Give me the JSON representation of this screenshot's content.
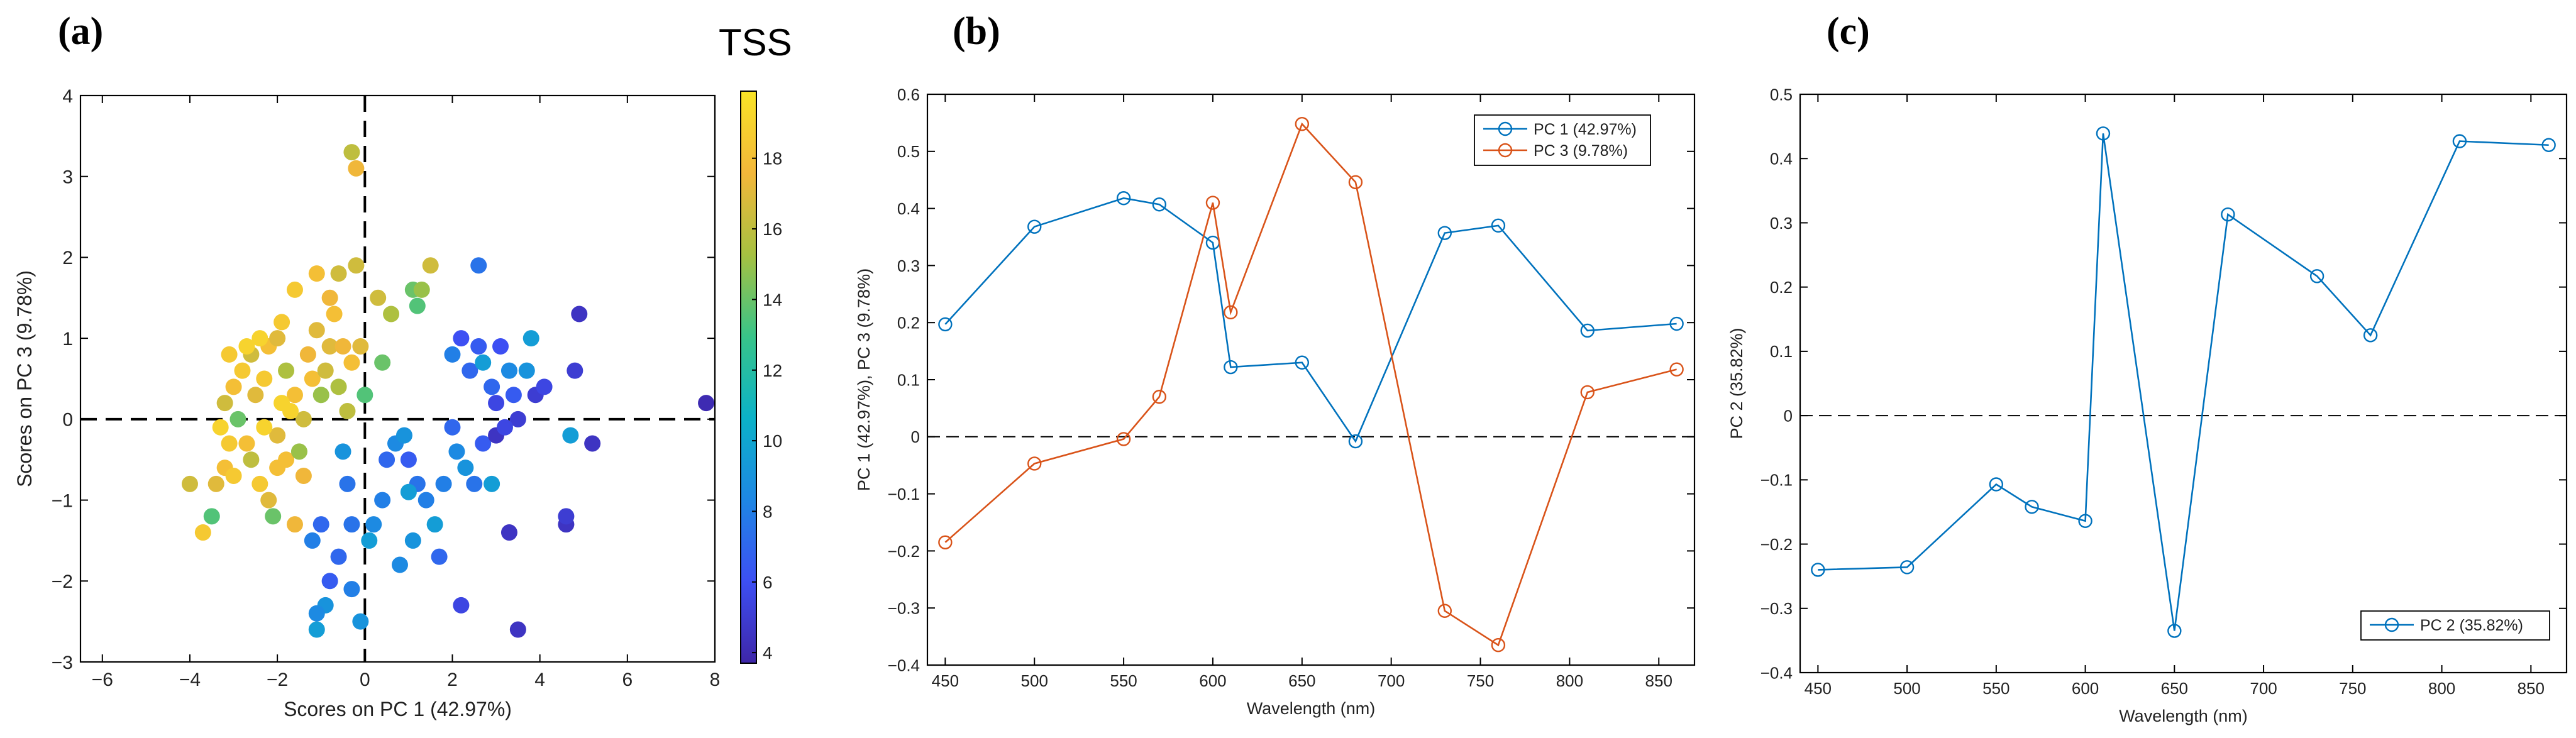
{
  "figure": {
    "panel_letters": [
      "(a)",
      "(b)",
      "(c)"
    ],
    "colorbar_title": "TSS",
    "colormap": [
      "#3e26a8",
      "#3d4ff3",
      "#1e87e4",
      "#0bb2c8",
      "#38c489",
      "#a6c141",
      "#f3b73a",
      "#f9e426"
    ]
  },
  "chart_data": [
    {
      "id": "a",
      "type": "scatter",
      "title": "",
      "xlabel": "Scores on PC 1 (42.97%)",
      "ylabel": "Scores on PC 3 (9.78%)",
      "xlim": [
        -6.5,
        8
      ],
      "ylim": [
        -3,
        4
      ],
      "xticks": [
        -6,
        -4,
        -2,
        0,
        2,
        4,
        6,
        8
      ],
      "yticks": [
        -3,
        -2,
        -1,
        0,
        1,
        2,
        3,
        4
      ],
      "grid": false,
      "reference_lines": "dashed lines at x = 0 and y = 0",
      "color_variable": "TSS",
      "colorbar_range": [
        3.7,
        19.9
      ],
      "colorbar_ticks": [
        4,
        6,
        8,
        10,
        12,
        14,
        16,
        18
      ],
      "points": [
        {
          "x": -0.3,
          "y": 3.3,
          "c": 16.0
        },
        {
          "x": -0.2,
          "y": 3.1,
          "c": 17.5
        },
        {
          "x": -3.7,
          "y": -1.4,
          "c": 18.5
        },
        {
          "x": -4.0,
          "y": -0.8,
          "c": 16.5
        },
        {
          "x": -3.5,
          "y": -1.2,
          "c": 13.5
        },
        {
          "x": -3.4,
          "y": -0.8,
          "c": 17.0
        },
        {
          "x": -3.2,
          "y": -0.6,
          "c": 18.0
        },
        {
          "x": -3.0,
          "y": -0.7,
          "c": 18.5
        },
        {
          "x": -3.3,
          "y": -0.1,
          "c": 19.0
        },
        {
          "x": -3.1,
          "y": -0.3,
          "c": 18.5
        },
        {
          "x": -2.9,
          "y": 0.0,
          "c": 14.0
        },
        {
          "x": -2.7,
          "y": -0.3,
          "c": 18.0
        },
        {
          "x": -2.6,
          "y": -0.5,
          "c": 16.0
        },
        {
          "x": -2.4,
          "y": -0.8,
          "c": 18.5
        },
        {
          "x": -2.2,
          "y": -1.0,
          "c": 17.0
        },
        {
          "x": -2.1,
          "y": -1.2,
          "c": 14.0
        },
        {
          "x": -2.0,
          "y": -0.6,
          "c": 18.0
        },
        {
          "x": -1.6,
          "y": -1.3,
          "c": 17.5
        },
        {
          "x": -2.0,
          "y": -0.2,
          "c": 17.0
        },
        {
          "x": -1.8,
          "y": -0.5,
          "c": 18.0
        },
        {
          "x": -1.5,
          "y": -0.4,
          "c": 15.0
        },
        {
          "x": -1.4,
          "y": -0.7,
          "c": 17.5
        },
        {
          "x": -3.2,
          "y": 0.2,
          "c": 16.5
        },
        {
          "x": -3.0,
          "y": 0.4,
          "c": 18.0
        },
        {
          "x": -2.8,
          "y": 0.6,
          "c": 18.5
        },
        {
          "x": -2.6,
          "y": 0.8,
          "c": 16.5
        },
        {
          "x": -2.5,
          "y": 0.3,
          "c": 17.0
        },
        {
          "x": -2.3,
          "y": 0.5,
          "c": 18.5
        },
        {
          "x": -2.2,
          "y": 0.9,
          "c": 18.0
        },
        {
          "x": -2.0,
          "y": 1.0,
          "c": 17.0
        },
        {
          "x": -1.9,
          "y": 1.2,
          "c": 18.5
        },
        {
          "x": -1.8,
          "y": 0.6,
          "c": 15.5
        },
        {
          "x": -1.6,
          "y": 0.3,
          "c": 18.0
        },
        {
          "x": -1.4,
          "y": 0.0,
          "c": 16.5
        },
        {
          "x": -1.3,
          "y": 0.8,
          "c": 17.5
        },
        {
          "x": -1.2,
          "y": 0.5,
          "c": 18.0
        },
        {
          "x": -1.1,
          "y": 1.1,
          "c": 17.0
        },
        {
          "x": -1.0,
          "y": 0.3,
          "c": 15.0
        },
        {
          "x": -0.9,
          "y": 0.6,
          "c": 16.5
        },
        {
          "x": -0.8,
          "y": 0.9,
          "c": 17.0
        },
        {
          "x": -0.7,
          "y": 1.3,
          "c": 18.0
        },
        {
          "x": -0.6,
          "y": 0.4,
          "c": 15.5
        },
        {
          "x": -0.5,
          "y": 0.9,
          "c": 17.5
        },
        {
          "x": -0.4,
          "y": 0.1,
          "c": 16.0
        },
        {
          "x": -0.3,
          "y": 0.7,
          "c": 18.0
        },
        {
          "x": -0.2,
          "y": 1.9,
          "c": 16.5
        },
        {
          "x": -0.1,
          "y": 0.9,
          "c": 17.0
        },
        {
          "x": -1.6,
          "y": 1.6,
          "c": 18.5
        },
        {
          "x": -1.1,
          "y": 1.8,
          "c": 18.0
        },
        {
          "x": -0.8,
          "y": 1.5,
          "c": 17.5
        },
        {
          "x": -0.6,
          "y": 1.8,
          "c": 16.5
        },
        {
          "x": 0.3,
          "y": 1.5,
          "c": 16.5
        },
        {
          "x": 0.6,
          "y": 1.3,
          "c": 15.5
        },
        {
          "x": 1.1,
          "y": 1.6,
          "c": 14.0
        },
        {
          "x": 1.3,
          "y": 1.6,
          "c": 15.0
        },
        {
          "x": 1.2,
          "y": 1.4,
          "c": 13.5
        },
        {
          "x": 1.5,
          "y": 1.9,
          "c": 16.5
        },
        {
          "x": 0.4,
          "y": 0.7,
          "c": 14.0
        },
        {
          "x": 0.0,
          "y": 0.3,
          "c": 13.5
        },
        {
          "x": -2.4,
          "y": 1.0,
          "c": 19.0
        },
        {
          "x": -2.7,
          "y": 0.9,
          "c": 19.0
        },
        {
          "x": -3.1,
          "y": 0.8,
          "c": 18.5
        },
        {
          "x": -1.7,
          "y": 0.1,
          "c": 19.0
        },
        {
          "x": -2.3,
          "y": -0.1,
          "c": 19.0
        },
        {
          "x": -1.9,
          "y": 0.2,
          "c": 19.0
        },
        {
          "x": -0.5,
          "y": -0.4,
          "c": 9.0
        },
        {
          "x": -0.3,
          "y": -1.3,
          "c": 7.5
        },
        {
          "x": -0.6,
          "y": -1.7,
          "c": 7.0
        },
        {
          "x": -0.8,
          "y": -2.0,
          "c": 6.5
        },
        {
          "x": -0.9,
          "y": -2.3,
          "c": 9.0
        },
        {
          "x": -1.1,
          "y": -2.4,
          "c": 8.5
        },
        {
          "x": -1.1,
          "y": -2.6,
          "c": 9.5
        },
        {
          "x": -1.2,
          "y": -1.5,
          "c": 8.0
        },
        {
          "x": -1.0,
          "y": -1.3,
          "c": 7.0
        },
        {
          "x": -0.4,
          "y": -0.8,
          "c": 7.5
        },
        {
          "x": -0.1,
          "y": -2.5,
          "c": 9.0
        },
        {
          "x": -0.3,
          "y": -2.1,
          "c": 8.0
        },
        {
          "x": 0.1,
          "y": -1.5,
          "c": 9.5
        },
        {
          "x": 0.2,
          "y": -1.3,
          "c": 8.5
        },
        {
          "x": 0.4,
          "y": -1.0,
          "c": 8.0
        },
        {
          "x": 0.5,
          "y": -0.5,
          "c": 7.0
        },
        {
          "x": 0.7,
          "y": -0.3,
          "c": 8.5
        },
        {
          "x": 0.9,
          "y": -0.2,
          "c": 9.0
        },
        {
          "x": 1.0,
          "y": -0.5,
          "c": 6.5
        },
        {
          "x": 1.2,
          "y": -0.8,
          "c": 7.5
        },
        {
          "x": 1.4,
          "y": -1.0,
          "c": 8.0
        },
        {
          "x": 1.6,
          "y": -1.3,
          "c": 9.5
        },
        {
          "x": 1.7,
          "y": -1.7,
          "c": 7.0
        },
        {
          "x": 0.8,
          "y": -1.8,
          "c": 8.5
        },
        {
          "x": 1.1,
          "y": -1.5,
          "c": 9.0
        },
        {
          "x": 2.0,
          "y": -0.1,
          "c": 7.0
        },
        {
          "x": 2.1,
          "y": -0.4,
          "c": 8.5
        },
        {
          "x": 2.3,
          "y": -0.6,
          "c": 9.0
        },
        {
          "x": 2.5,
          "y": -0.8,
          "c": 7.5
        },
        {
          "x": 2.7,
          "y": -0.3,
          "c": 6.5
        },
        {
          "x": 2.9,
          "y": -0.8,
          "c": 9.5
        },
        {
          "x": 2.2,
          "y": -2.3,
          "c": 5.5
        },
        {
          "x": 3.5,
          "y": -2.6,
          "c": 4.5
        },
        {
          "x": 2.0,
          "y": 0.8,
          "c": 8.0
        },
        {
          "x": 2.2,
          "y": 1.0,
          "c": 6.0
        },
        {
          "x": 2.4,
          "y": 0.6,
          "c": 7.0
        },
        {
          "x": 2.6,
          "y": 0.9,
          "c": 6.5
        },
        {
          "x": 2.7,
          "y": 0.7,
          "c": 9.5
        },
        {
          "x": 2.9,
          "y": 0.4,
          "c": 7.0
        },
        {
          "x": 3.0,
          "y": 0.2,
          "c": 5.5
        },
        {
          "x": 3.1,
          "y": 0.9,
          "c": 6.0
        },
        {
          "x": 3.3,
          "y": 0.6,
          "c": 8.5
        },
        {
          "x": 3.4,
          "y": 0.3,
          "c": 6.5
        },
        {
          "x": 3.5,
          "y": 0.0,
          "c": 5.0
        },
        {
          "x": 3.0,
          "y": -0.2,
          "c": 4.5
        },
        {
          "x": 3.2,
          "y": -0.1,
          "c": 5.5
        },
        {
          "x": 3.7,
          "y": 0.6,
          "c": 9.0
        },
        {
          "x": 3.9,
          "y": 0.3,
          "c": 5.0
        },
        {
          "x": 2.6,
          "y": 1.9,
          "c": 7.5
        },
        {
          "x": 3.3,
          "y": -1.4,
          "c": 4.5
        },
        {
          "x": 4.1,
          "y": 0.4,
          "c": 5.5
        },
        {
          "x": 3.8,
          "y": 1.0,
          "c": 9.5
        },
        {
          "x": 4.9,
          "y": 1.3,
          "c": 4.5
        },
        {
          "x": 4.8,
          "y": 0.6,
          "c": 5.0
        },
        {
          "x": 4.7,
          "y": -0.2,
          "c": 9.5
        },
        {
          "x": 5.2,
          "y": -0.3,
          "c": 4.5
        },
        {
          "x": 4.6,
          "y": -1.3,
          "c": 4.5
        },
        {
          "x": 4.6,
          "y": -1.2,
          "c": 5.0
        },
        {
          "x": 7.8,
          "y": 0.2,
          "c": 4.0
        },
        {
          "x": 1.0,
          "y": -0.9,
          "c": 9.5
        },
        {
          "x": 1.8,
          "y": -0.8,
          "c": 8.0
        }
      ]
    },
    {
      "id": "b",
      "type": "line",
      "title": "",
      "xlabel": "Wavelength (nm)",
      "ylabel": "PC 1 (42.97%), PC 3 (9.78%)",
      "xlim": [
        440,
        870
      ],
      "ylim": [
        -0.4,
        0.6
      ],
      "xticks": [
        450,
        500,
        550,
        600,
        650,
        700,
        750,
        800,
        850
      ],
      "yticks": [
        -0.4,
        -0.3,
        -0.2,
        -0.1,
        0,
        0.1,
        0.2,
        0.3,
        0.4,
        0.5,
        0.6
      ],
      "ytick_labels": [
        "-0.4",
        "-0.3",
        "-0.2",
        "-0.1",
        "0",
        "0.1",
        "0.2",
        "0.3",
        "0.4",
        "0.5",
        "0.6"
      ],
      "grid": false,
      "reference_lines": "dashed line at y = 0",
      "legend_position": "top-right",
      "x": [
        450,
        500,
        550,
        570,
        600,
        610,
        650,
        680,
        730,
        760,
        810,
        860
      ],
      "series": [
        {
          "name": "PC 1 (42.97%)",
          "color": "#0072BD",
          "values": [
            0.197,
            0.368,
            0.418,
            0.407,
            0.34,
            0.122,
            0.13,
            -0.008,
            0.357,
            0.37,
            0.186,
            0.198
          ]
        },
        {
          "name": "PC 3 (9.78%)",
          "color": "#D95319",
          "values": [
            -0.185,
            -0.047,
            -0.004,
            0.07,
            0.41,
            0.218,
            0.548,
            0.446,
            -0.305,
            -0.365,
            0.078,
            0.118
          ]
        }
      ]
    },
    {
      "id": "c",
      "type": "line",
      "title": "",
      "xlabel": "Wavelength (nm)",
      "ylabel": "PC 2 (35.82%)",
      "xlim": [
        440,
        870
      ],
      "ylim": [
        -0.4,
        0.5
      ],
      "xticks": [
        450,
        500,
        550,
        600,
        650,
        700,
        750,
        800,
        850
      ],
      "yticks": [
        -0.4,
        -0.3,
        -0.2,
        -0.1,
        0,
        0.1,
        0.2,
        0.3,
        0.4,
        0.5
      ],
      "ytick_labels": [
        "-0.4",
        "-0.3",
        "-0.2",
        "-0.1",
        "0",
        "0.1",
        "0.2",
        "0.3",
        "0.4",
        "0.5"
      ],
      "grid": false,
      "reference_lines": "dashed line at y = 0",
      "legend_position": "bottom-right",
      "x": [
        450,
        500,
        550,
        570,
        600,
        610,
        650,
        680,
        730,
        760,
        810,
        860
      ],
      "series": [
        {
          "name": "PC 2 (35.82%)",
          "color": "#0072BD",
          "values": [
            -0.24,
            -0.236,
            -0.107,
            -0.142,
            -0.164,
            0.439,
            -0.335,
            0.313,
            0.217,
            0.125,
            0.427,
            0.421
          ]
        }
      ]
    }
  ]
}
